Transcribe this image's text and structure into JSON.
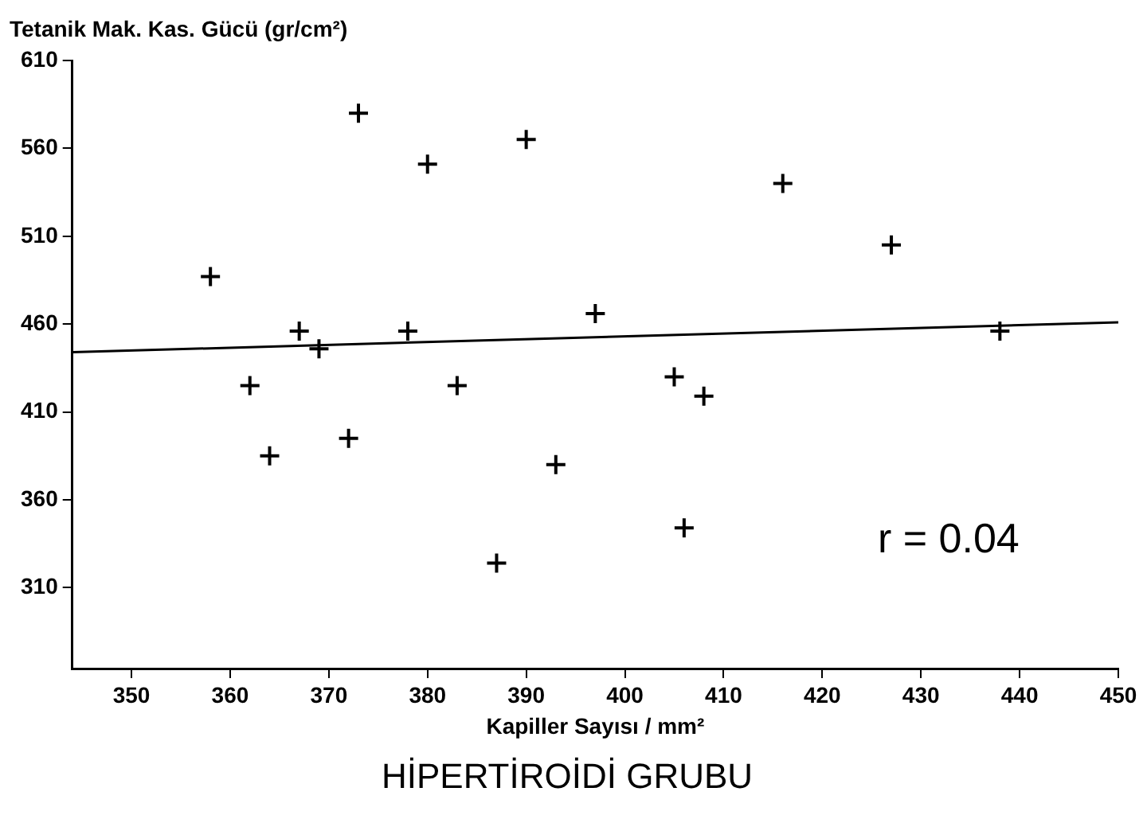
{
  "chart_data": {
    "type": "scatter",
    "title": "HİPERTİROİDİ GRUBU",
    "xlabel": "Kapiller Sayısı / mm²",
    "ylabel": "Tetanik Mak. Kas. Gücü (gr/cm²)",
    "annotations": [
      "r = 0.04"
    ],
    "xlim": [
      344,
      450
    ],
    "xticks": [
      350,
      360,
      370,
      380,
      390,
      400,
      410,
      420,
      430,
      440,
      450
    ],
    "ylim": [
      264,
      610
    ],
    "yticks": [
      310,
      360,
      410,
      460,
      510,
      560,
      610
    ],
    "grid": false,
    "legend": false,
    "marker": "cross",
    "series": [
      {
        "color": "#000000",
        "x": [
          358,
          362,
          364,
          367,
          369,
          372,
          373,
          378,
          380,
          383,
          387,
          390,
          393,
          397,
          405,
          406,
          408,
          416,
          427,
          438
        ],
        "values": [
          487,
          425,
          385,
          456,
          446,
          395,
          580,
          456,
          551,
          425,
          324,
          565,
          380,
          466,
          430,
          344,
          419,
          540,
          505,
          456
        ]
      },
      {
        "type": "line",
        "color": "#000000",
        "marker": "none",
        "x": [
          344,
          450
        ],
        "values": [
          444,
          461
        ]
      }
    ]
  }
}
